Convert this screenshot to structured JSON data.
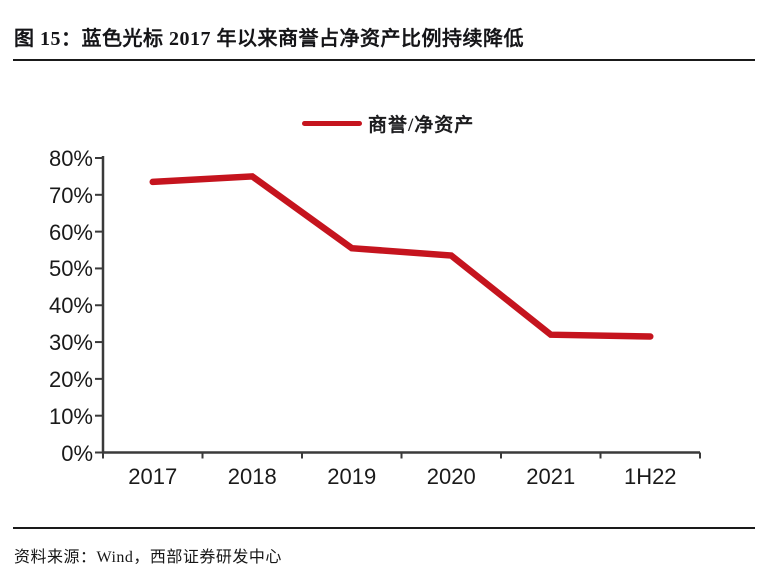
{
  "figure": {
    "title": "图 15：蓝色光标 2017 年以来商誉占净资产比例持续降低",
    "source_label": "资料来源：Wind，西部证券研发中心"
  },
  "chart_data": {
    "type": "line",
    "title": "图 15：蓝色光标 2017 年以来商誉占净资产比例持续降低",
    "categories": [
      "2017",
      "2018",
      "2019",
      "2020",
      "2021",
      "1H22"
    ],
    "series": [
      {
        "name": "商誉/净资产",
        "values": [
          73.5,
          75,
          55.5,
          53.5,
          32,
          31.5
        ]
      }
    ],
    "xlabel": "",
    "ylabel": "",
    "ylim": [
      0,
      80
    ],
    "ytick_step": 10,
    "ytick_labels": [
      "0%",
      "10%",
      "20%",
      "30%",
      "40%",
      "50%",
      "60%",
      "70%",
      "80%"
    ],
    "grid": false,
    "legend_position": "top-center",
    "line_color": "#C5141E"
  },
  "colors": {
    "accent_red": "#C5141E",
    "axis": "#3a3a3a",
    "rule": "#1a1a1a",
    "text": "#111111"
  }
}
